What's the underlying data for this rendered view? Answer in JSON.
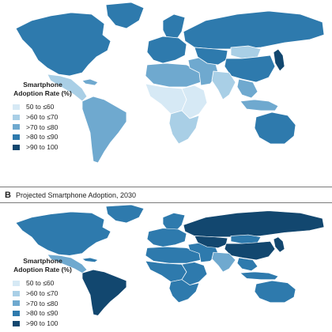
{
  "colors": {
    "bin1": "#d6e9f5",
    "bin2": "#a9cfe6",
    "bin3": "#6fa9cf",
    "bin4": "#2e7aad",
    "bin5": "#12476f",
    "ocean": "#ffffff",
    "border": "#ffffff"
  },
  "legend": {
    "title": "Smartphone Adoption Rate (%)",
    "items": [
      "50 to ≤60",
      ">60 to ≤70",
      ">70 to ≤80",
      ">80 to ≤90",
      ">90 to 100"
    ]
  },
  "panels": [
    {
      "letter": "",
      "title": "",
      "regions": {
        "north_america": 4,
        "greenland": 4,
        "mexico_central_america": 2,
        "caribbean": 3,
        "south_america": 3,
        "europe": 4,
        "scandinavia": 4,
        "russia": 4,
        "north_africa": 3,
        "west_central_africa": 1,
        "east_africa": 1,
        "southern_africa": 2,
        "middle_east": 3,
        "central_asia": 4,
        "china": 4,
        "mongolia": 2,
        "india": 2,
        "southeast_asia": 3,
        "japan_korea": 5,
        "indonesia": 3,
        "australia": 4
      }
    },
    {
      "letter": "B",
      "title": "Projected Smartphone Adoption, 2030",
      "regions": {
        "north_america": 4,
        "greenland": 4,
        "mexico_central_america": 3,
        "caribbean": 4,
        "south_america": 5,
        "europe": 4,
        "scandinavia": 4,
        "russia": 5,
        "north_africa": 4,
        "west_central_africa": 4,
        "east_africa": 4,
        "southern_africa": 4,
        "middle_east": 4,
        "central_asia": 5,
        "china": 5,
        "mongolia": 4,
        "india": 3,
        "southeast_asia": 4,
        "japan_korea": 5,
        "indonesia": 4,
        "australia": 4
      }
    }
  ]
}
